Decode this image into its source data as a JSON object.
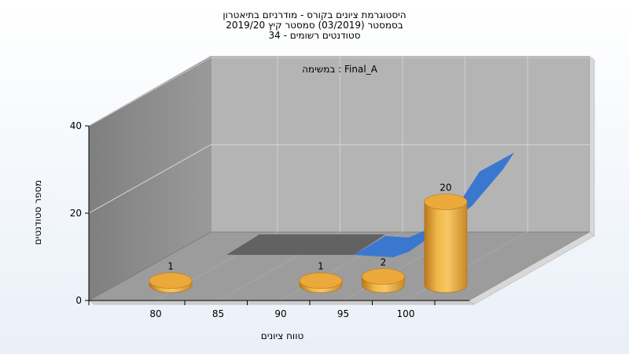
{
  "chart_data": {
    "type": "bar",
    "title_lines": [
      "היסטוגרמת ציונים בקורס - מודרניזם בתיאטרון",
      "בסמסטר  (03/2019)  סמסטר קיץ 2019/20",
      "סטודנטים רשומים - 34"
    ],
    "xlabel": "טווח ציונים",
    "ylabel": "מספר סטודנטים",
    "x_ticks": [
      "80",
      "85",
      "90",
      "95",
      "100"
    ],
    "y_ticks": [
      "0",
      "20",
      "40"
    ],
    "ylim": [
      0,
      40
    ],
    "bars": [
      {
        "x": 79,
        "value": 1
      },
      {
        "x": 91,
        "value": 1
      },
      {
        "x": 96,
        "value": 2
      },
      {
        "x": 101,
        "value": 20
      }
    ],
    "back_series_label": "במשימה : Final_A",
    "colors": {
      "bar": "#e0a030",
      "back_area_gray": "#5f5f5f",
      "back_area_blue": "#3a78d0",
      "wall_left": "#8c8c8c",
      "wall_back": "#b4b4b4",
      "floor": "#9a9a9a"
    }
  }
}
